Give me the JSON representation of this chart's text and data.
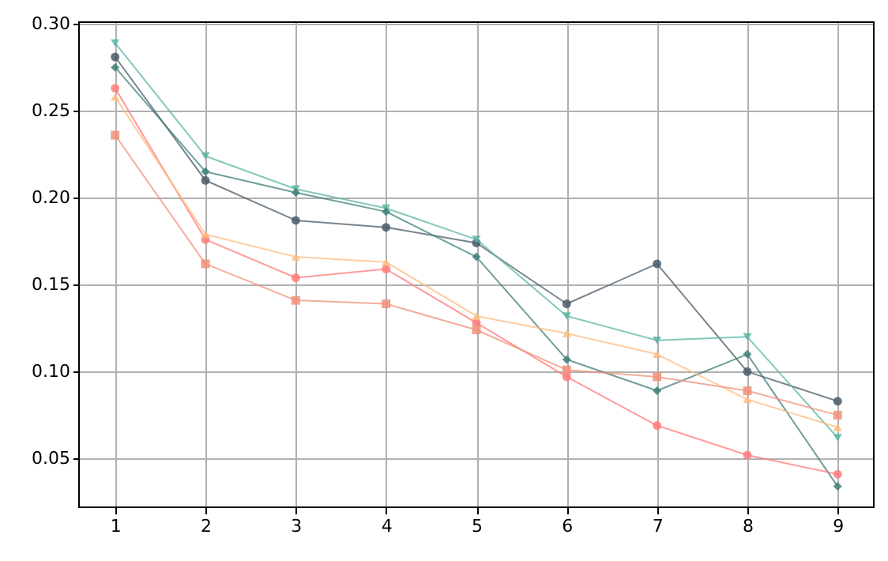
{
  "chart_data": {
    "type": "line",
    "x": [
      1,
      2,
      3,
      4,
      5,
      6,
      7,
      8,
      9
    ],
    "series": [
      {
        "color": "#4a5b69",
        "marker": "circle",
        "values": [
          0.281,
          0.21,
          0.187,
          0.183,
          0.174,
          0.139,
          0.162,
          0.1,
          0.083
        ]
      },
      {
        "color": "#5ab5a4",
        "marker": "triangle-down",
        "values": [
          0.289,
          0.224,
          0.205,
          0.194,
          0.176,
          0.132,
          0.118,
          0.12,
          0.062
        ]
      },
      {
        "color": "#3f7f7a",
        "marker": "diamond",
        "values": [
          0.275,
          0.215,
          0.203,
          0.192,
          0.166,
          0.107,
          0.089,
          0.11,
          0.034
        ]
      },
      {
        "color": "#ff7b7b",
        "marker": "circle",
        "values": [
          0.263,
          0.176,
          0.154,
          0.159,
          0.128,
          0.097,
          0.069,
          0.052,
          0.041
        ]
      },
      {
        "color": "#ffbb80",
        "marker": "triangle",
        "values": [
          0.258,
          0.179,
          0.166,
          0.163,
          0.132,
          0.122,
          0.11,
          0.084,
          0.068
        ]
      },
      {
        "color": "#f0907a",
        "marker": "square",
        "values": [
          0.236,
          0.162,
          0.141,
          0.139,
          0.124,
          0.101,
          0.097,
          0.089,
          0.075
        ]
      }
    ],
    "xlim": [
      0.6,
      9.4
    ],
    "xticks": [
      1,
      2,
      3,
      4,
      5,
      6,
      7,
      8,
      9
    ],
    "ylim": [
      0.022,
      0.301
    ],
    "yticks": [
      0.05,
      {
        "value": 0.1,
        "label": "0.10"
      },
      0.15,
      {
        "value": 0.2,
        "label": "0.20"
      },
      0.25,
      {
        "value": 0.3,
        "label": "0.30"
      }
    ],
    "grid": true,
    "line_style": "solid"
  }
}
